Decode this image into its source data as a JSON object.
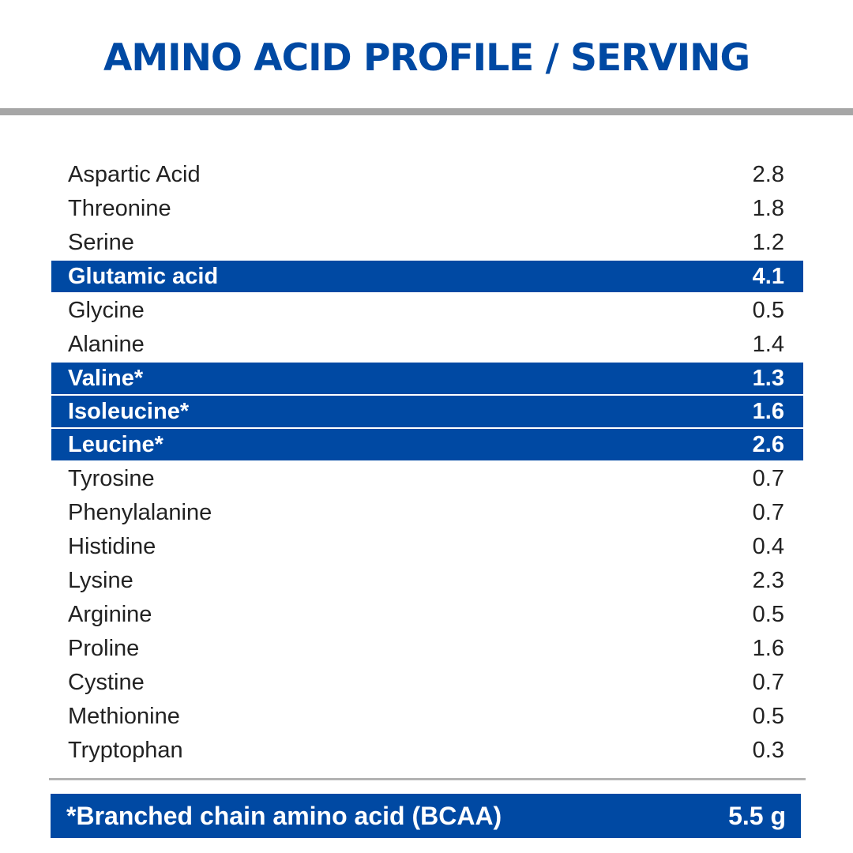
{
  "title": "AMINO ACID PROFILE / SERVING",
  "colors": {
    "accent": "#0049a3",
    "rule": "#a6a6a6",
    "text": "#222222",
    "background": "#ffffff"
  },
  "rows": [
    {
      "name": "Aspartic Acid",
      "value": "2.8",
      "highlight": false
    },
    {
      "name": "Threonine",
      "value": "1.8",
      "highlight": false
    },
    {
      "name": "Serine",
      "value": "1.2",
      "highlight": false
    },
    {
      "name": "Glutamic acid",
      "value": "4.1",
      "highlight": true
    },
    {
      "name": "Glycine",
      "value": "0.5",
      "highlight": false
    },
    {
      "name": "Alanine",
      "value": "1.4",
      "highlight": false
    },
    {
      "name": "Valine*",
      "value": "1.3",
      "highlight": true
    },
    {
      "name": "Isoleucine*",
      "value": "1.6",
      "highlight": true
    },
    {
      "name": "Leucine*",
      "value": "2.6",
      "highlight": true
    },
    {
      "name": "Tyrosine",
      "value": "0.7",
      "highlight": false
    },
    {
      "name": "Phenylalanine",
      "value": "0.7",
      "highlight": false
    },
    {
      "name": "Histidine",
      "value": "0.4",
      "highlight": false
    },
    {
      "name": "Lysine",
      "value": "2.3",
      "highlight": false
    },
    {
      "name": "Arginine",
      "value": "0.5",
      "highlight": false
    },
    {
      "name": "Proline",
      "value": "1.6",
      "highlight": false
    },
    {
      "name": "Cystine",
      "value": "0.7",
      "highlight": false
    },
    {
      "name": "Methionine",
      "value": "0.5",
      "highlight": false
    },
    {
      "name": "Tryptophan",
      "value": "0.3",
      "highlight": false
    }
  ],
  "footer": {
    "label": "*Branched chain amino acid (BCAA)",
    "value": "5.5 g"
  }
}
